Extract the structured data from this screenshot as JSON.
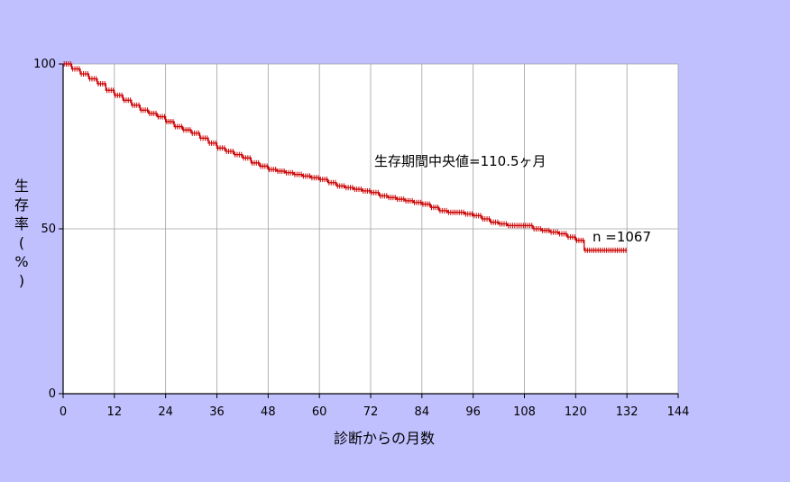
{
  "chart_data": {
    "type": "line",
    "title": "",
    "xlabel": "診断からの月数",
    "ylabel": "生存率(%)",
    "xlim": [
      0,
      144
    ],
    "ylim": [
      0,
      100
    ],
    "xticks": [
      0,
      12,
      24,
      36,
      48,
      60,
      72,
      84,
      96,
      108,
      120,
      132,
      144
    ],
    "yticks": [
      0,
      50,
      100
    ],
    "grid": true,
    "series_color": "#cc0000",
    "grid_color": "#a0a0a0",
    "plot_background": "#ffffff",
    "page_background": "#c0c0ff",
    "annotations": {
      "median": "生存期間中央値=110.5ヶ月",
      "n": "n =1067"
    },
    "series": [
      {
        "points": [
          [
            0,
            100
          ],
          [
            2,
            98.5
          ],
          [
            4,
            97
          ],
          [
            6,
            95.5
          ],
          [
            8,
            94
          ],
          [
            10,
            92
          ],
          [
            12,
            90.5
          ],
          [
            14,
            89
          ],
          [
            16,
            87.5
          ],
          [
            18,
            86
          ],
          [
            20,
            85
          ],
          [
            22,
            84
          ],
          [
            24,
            82.5
          ],
          [
            26,
            81
          ],
          [
            28,
            80
          ],
          [
            30,
            79
          ],
          [
            32,
            77.5
          ],
          [
            34,
            76
          ],
          [
            36,
            74.5
          ],
          [
            38,
            73.5
          ],
          [
            40,
            72.5
          ],
          [
            42,
            71.5
          ],
          [
            44,
            70
          ],
          [
            46,
            69
          ],
          [
            48,
            68
          ],
          [
            50,
            67.5
          ],
          [
            52,
            67
          ],
          [
            54,
            66.5
          ],
          [
            56,
            66
          ],
          [
            58,
            65.5
          ],
          [
            60,
            65
          ],
          [
            62,
            64
          ],
          [
            64,
            63
          ],
          [
            66,
            62.5
          ],
          [
            68,
            62
          ],
          [
            70,
            61.5
          ],
          [
            72,
            61
          ],
          [
            74,
            60
          ],
          [
            76,
            59.5
          ],
          [
            78,
            59
          ],
          [
            80,
            58.5
          ],
          [
            82,
            58
          ],
          [
            84,
            57.5
          ],
          [
            86,
            56.5
          ],
          [
            88,
            55.5
          ],
          [
            90,
            55
          ],
          [
            92,
            55
          ],
          [
            94,
            54.5
          ],
          [
            96,
            54
          ],
          [
            98,
            53
          ],
          [
            100,
            52
          ],
          [
            102,
            51.5
          ],
          [
            104,
            51
          ],
          [
            106,
            51
          ],
          [
            108,
            51
          ],
          [
            110,
            50
          ],
          [
            112,
            49.5
          ],
          [
            114,
            49
          ],
          [
            116,
            48.5
          ],
          [
            118,
            47.5
          ],
          [
            120,
            46.5
          ],
          [
            122,
            43.5
          ],
          [
            124,
            43.5
          ],
          [
            126,
            43.5
          ],
          [
            128,
            43.5
          ],
          [
            130,
            43.5
          ],
          [
            132,
            43.5
          ]
        ]
      }
    ]
  }
}
